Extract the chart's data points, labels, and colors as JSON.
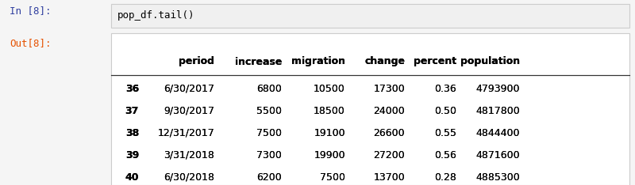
{
  "in_label": "In [8]:",
  "out_label": "Out[8]:",
  "code_text": "pop_df.tail()",
  "columns": [
    "period",
    "increase",
    "migration",
    "change",
    "percent",
    "population"
  ],
  "rows": [
    [
      "36",
      "6/30/2017",
      "6800",
      "10500",
      "17300",
      "0.36",
      "4793900"
    ],
    [
      "37",
      "9/30/2017",
      "5500",
      "18500",
      "24000",
      "0.50",
      "4817800"
    ],
    [
      "38",
      "12/31/2017",
      "7500",
      "19100",
      "26600",
      "0.55",
      "4844400"
    ],
    [
      "39",
      "3/31/2018",
      "7300",
      "19900",
      "27200",
      "0.56",
      "4871600"
    ],
    [
      "40",
      "6/30/2018",
      "6200",
      "7500",
      "13700",
      "0.28",
      "4885300"
    ]
  ],
  "bg_color": "#f5f5f5",
  "input_box_bg": "#f0f0f0",
  "in_label_color": "#303f9f",
  "out_label_color": "#e65100",
  "code_color": "#000000",
  "header_color": "#000000",
  "index_color": "#000000",
  "data_color": "#000000",
  "font_size": 9.0
}
